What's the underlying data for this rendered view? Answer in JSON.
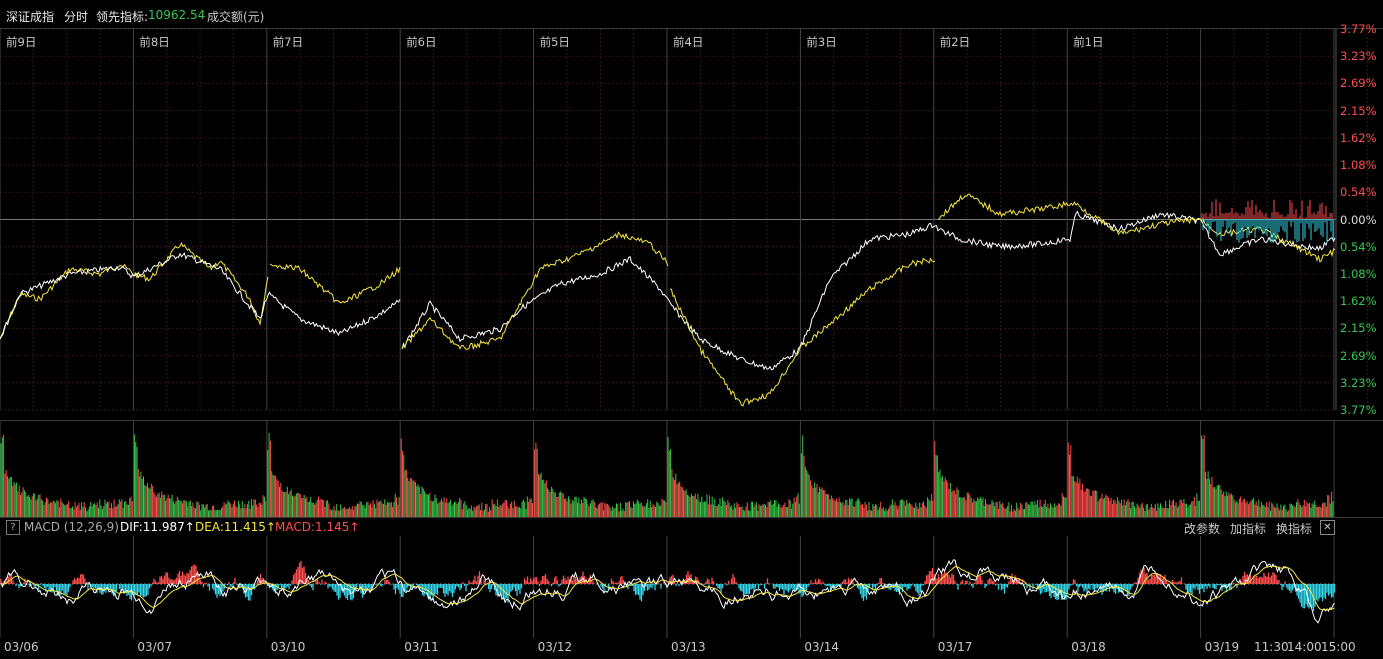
{
  "header": {
    "index_name": "深证成指",
    "mode": "分时",
    "lead_label": "领先指标:",
    "lead_value": "10962.54",
    "volume_label": "成交额(元)"
  },
  "day_labels": [
    "前9日",
    "前8日",
    "前7日",
    "前6日",
    "前5日",
    "前4日",
    "前3日",
    "前2日",
    "前1日"
  ],
  "pct_labels": [
    "3.77%",
    "3.23%",
    "2.69%",
    "2.15%",
    "1.62%",
    "1.08%",
    "0.54%",
    "0.00%",
    "0.54%",
    "1.08%",
    "1.62%",
    "2.15%",
    "2.69%",
    "3.23%",
    "3.77%"
  ],
  "macd": {
    "help": "?",
    "title": "MACD (12,26,9)",
    "dif": "DIF:11.987↑",
    "dea": "DEA:11.415↑",
    "macd": "MACD:1.145↑",
    "btn_params": "改参数",
    "btn_add": "加指标",
    "btn_switch": "换指标",
    "close": "✕"
  },
  "dates": [
    "03/06",
    "03/07",
    "03/10",
    "03/11",
    "03/12",
    "03/13",
    "03/14",
    "03/17",
    "03/18",
    "03/19"
  ],
  "time_labels": [
    "11:30",
    "14:00",
    "15:00"
  ],
  "colors": {
    "up": "#ff4d4d",
    "down": "#33d4e8",
    "green": "#35c84b",
    "white": "#ffffff",
    "yellow": "#f5e642",
    "grid": "#3a1414"
  }
}
